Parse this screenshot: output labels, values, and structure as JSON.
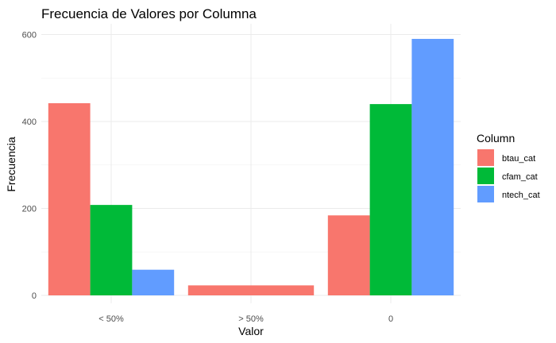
{
  "chart_data": {
    "type": "bar",
    "title": "Frecuencia de Valores por Columna",
    "xlabel": "Valor",
    "ylabel": "Frecuencia",
    "categories": [
      "< 50%",
      "> 50%",
      "0"
    ],
    "series": [
      {
        "name": "btau_cat",
        "color": "#F8766D",
        "values": [
          442,
          23,
          184
        ]
      },
      {
        "name": "cfam_cat",
        "color": "#00BA38",
        "values": [
          208,
          null,
          440
        ]
      },
      {
        "name": "ntech_cat",
        "color": "#619CFF",
        "values": [
          59,
          null,
          590
        ]
      }
    ],
    "ylim": [
      0,
      610
    ],
    "yticks": [
      0,
      200,
      400,
      600
    ],
    "grid": true,
    "legend": {
      "title": "Column",
      "position": "right"
    }
  }
}
